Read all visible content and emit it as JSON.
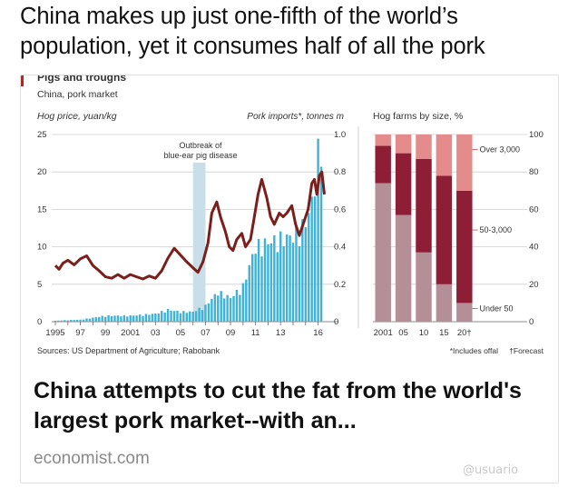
{
  "post": {
    "text": "China makes up just one-fifth of the world’s population, yet it consumes half of all the pork"
  },
  "card": {
    "title": "China attempts to cut the fat from the world's largest pork market--with an...",
    "domain": "economist.com"
  },
  "watermark": "@usuario",
  "colors": {
    "hog_price_line": "#7a1f1c",
    "imports_bar": "#3fb3d6",
    "outbreak_band": "#c8dfe9",
    "over_3000": "#e48c8c",
    "mid_50_3000": "#8e1e35",
    "under_50": "#b58f97"
  },
  "chart_data": [
    {
      "type": "line+bar",
      "title": "Pigs and troughs",
      "subtitle": "China, pork market",
      "left_axis_label": "Hog price, yuan/kg",
      "right_axis_label": "Pork imports*, tonnes m",
      "left_ticks": [
        "0",
        "5",
        "10",
        "15",
        "20",
        "25"
      ],
      "right_ticks": [
        "0",
        "0.2",
        "0.4",
        "0.6",
        "0.8",
        "1.0"
      ],
      "x_ticks": [
        "1995",
        "97",
        "99",
        "2001",
        "03",
        "05",
        "07",
        "09",
        "11",
        "13",
        "16"
      ],
      "ylim_left": [
        0,
        25
      ],
      "ylim_right": [
        0,
        1.0
      ],
      "annotation": "Outbreak of blue-ear pig disease",
      "annotation_lines": [
        "Outbreak of",
        "blue-ear pig disease"
      ],
      "outbreak_period": [
        2006.0,
        2007.0
      ],
      "hog_price": {
        "name": "Hog price",
        "points": [
          [
            1995.0,
            7.5
          ],
          [
            1995.3,
            7.0
          ],
          [
            1995.6,
            7.8
          ],
          [
            1996.0,
            8.2
          ],
          [
            1996.5,
            7.6
          ],
          [
            1997.0,
            8.4
          ],
          [
            1997.5,
            8.8
          ],
          [
            1998.0,
            7.5
          ],
          [
            1998.5,
            6.8
          ],
          [
            1999.0,
            6.0
          ],
          [
            1999.5,
            5.8
          ],
          [
            2000.0,
            6.3
          ],
          [
            2000.5,
            5.8
          ],
          [
            2001.0,
            6.3
          ],
          [
            2001.5,
            6.0
          ],
          [
            2002.0,
            5.7
          ],
          [
            2002.5,
            6.1
          ],
          [
            2003.0,
            5.8
          ],
          [
            2003.5,
            6.8
          ],
          [
            2004.0,
            8.5
          ],
          [
            2004.5,
            9.8
          ],
          [
            2005.0,
            8.9
          ],
          [
            2005.5,
            8.0
          ],
          [
            2006.0,
            7.2
          ],
          [
            2006.4,
            6.6
          ],
          [
            2006.8,
            8.0
          ],
          [
            2007.2,
            10.5
          ],
          [
            2007.5,
            14.5
          ],
          [
            2007.9,
            16.0
          ],
          [
            2008.2,
            14.0
          ],
          [
            2008.6,
            12.0
          ],
          [
            2008.9,
            10.0
          ],
          [
            2009.2,
            9.5
          ],
          [
            2009.5,
            11.0
          ],
          [
            2009.9,
            11.8
          ],
          [
            2010.2,
            10.0
          ],
          [
            2010.6,
            11.0
          ],
          [
            2010.9,
            14.0
          ],
          [
            2011.2,
            17.0
          ],
          [
            2011.5,
            19.0
          ],
          [
            2011.9,
            16.5
          ],
          [
            2012.2,
            14.0
          ],
          [
            2012.5,
            13.0
          ],
          [
            2012.9,
            14.5
          ],
          [
            2013.2,
            14.0
          ],
          [
            2013.5,
            14.5
          ],
          [
            2013.9,
            15.5
          ],
          [
            2014.2,
            13.0
          ],
          [
            2014.5,
            11.5
          ],
          [
            2014.9,
            13.5
          ],
          [
            2015.2,
            15.0
          ],
          [
            2015.5,
            18.5
          ],
          [
            2015.7,
            19.0
          ],
          [
            2015.9,
            17.0
          ],
          [
            2016.1,
            19.5
          ],
          [
            2016.3,
            20.0
          ],
          [
            2016.5,
            17.0
          ]
        ]
      },
      "pork_imports": {
        "name": "Pork imports",
        "points": [
          [
            1995.0,
            0.005
          ],
          [
            1996.0,
            0.008
          ],
          [
            1997.0,
            0.01
          ],
          [
            1998.0,
            0.02
          ],
          [
            1999.0,
            0.03
          ],
          [
            2000.0,
            0.03
          ],
          [
            2001.0,
            0.03
          ],
          [
            2002.0,
            0.035
          ],
          [
            2003.0,
            0.04
          ],
          [
            2004.0,
            0.06
          ],
          [
            2005.0,
            0.05
          ],
          [
            2006.0,
            0.05
          ],
          [
            2007.0,
            0.08
          ],
          [
            2008.0,
            0.15
          ],
          [
            2009.0,
            0.12
          ],
          [
            2010.0,
            0.18
          ],
          [
            2011.0,
            0.38
          ],
          [
            2012.0,
            0.4
          ],
          [
            2013.0,
            0.42
          ],
          [
            2014.0,
            0.43
          ],
          [
            2015.0,
            0.5
          ],
          [
            2015.5,
            0.6
          ],
          [
            2016.0,
            0.85
          ],
          [
            2016.3,
            0.9
          ]
        ]
      },
      "sources": "Sources: US Department of Agriculture; Rabobank"
    },
    {
      "type": "bar",
      "stacked": true,
      "title": "Hog farms by size, %",
      "categories": [
        "2001",
        "05",
        "10",
        "15",
        "20†"
      ],
      "ylim": [
        0,
        100
      ],
      "ticks": [
        "0",
        "20",
        "40",
        "60",
        "80",
        "100"
      ],
      "series": [
        {
          "name": "Under 50",
          "values": [
            74,
            57,
            37,
            20,
            10
          ]
        },
        {
          "name": "50-3,000",
          "values": [
            20,
            33,
            50,
            58,
            60
          ]
        },
        {
          "name": "Over 3,000",
          "values": [
            6,
            10,
            13,
            22,
            30
          ]
        }
      ],
      "footnotes": [
        "*Includes offal",
        "†Forecast"
      ]
    }
  ]
}
